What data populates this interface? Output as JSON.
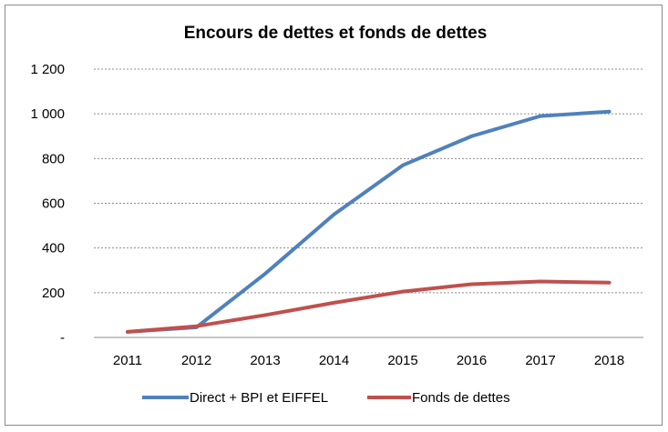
{
  "chart_data": {
    "type": "line",
    "title": "Encours de dettes et fonds de dettes",
    "xlabel": "",
    "ylabel": "",
    "categories": [
      "2011",
      "2012",
      "2013",
      "2014",
      "2015",
      "2016",
      "2017",
      "2018"
    ],
    "y_ticks": [
      "-",
      "200",
      "400",
      "600",
      "800",
      "1 000",
      "1 200"
    ],
    "ylim": [
      0,
      1200
    ],
    "grid": true,
    "legend_position": "bottom",
    "series": [
      {
        "name": "Direct + BPI et EIFFEL",
        "color": "#4F81BD",
        "values": [
          25,
          45,
          285,
          550,
          770,
          900,
          990,
          1010
        ]
      },
      {
        "name": "Fonds de dettes",
        "color": "#C0504D",
        "values": [
          25,
          50,
          100,
          155,
          205,
          238,
          250,
          245
        ]
      }
    ]
  }
}
